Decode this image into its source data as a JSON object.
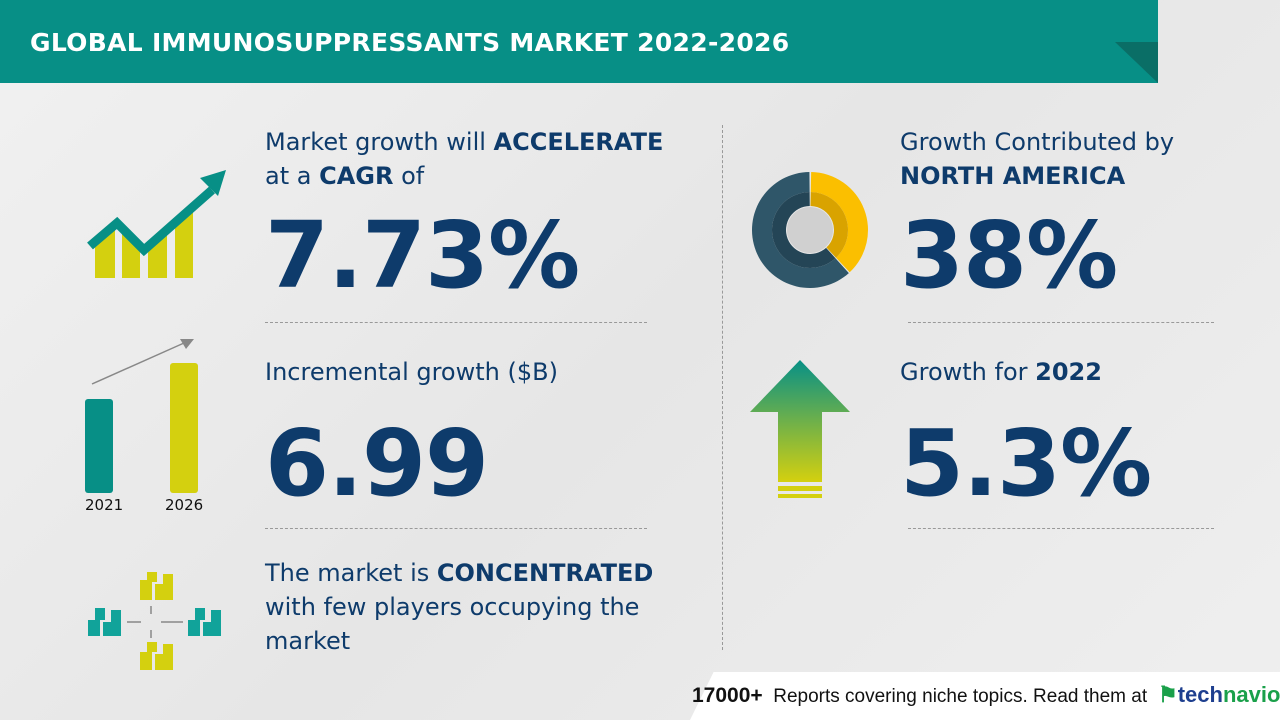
{
  "header": {
    "title": "GLOBAL IMMUNOSUPPRESSANTS MARKET 2022-2026"
  },
  "cagr": {
    "label_1": "Market growth will ",
    "label_1_bold": "ACCELERATE",
    "label_2": "at a ",
    "label_2_bold": "CAGR",
    "label_2_end": " of",
    "value": "7.73%"
  },
  "incremental": {
    "label": "Incremental growth ($B)",
    "value": "6.99",
    "bar_years": [
      "2021",
      "2026"
    ]
  },
  "concentration": {
    "label_1": "The market is ",
    "label_1_bold": "CONCENTRATED",
    "label_2": "with few players occupying the",
    "label_3": "market"
  },
  "region": {
    "label_1": "Growth Contributed by",
    "label_2_bold": "NORTH AMERICA",
    "value": "38%",
    "share_percent": 38
  },
  "yoy": {
    "label_1": "Growth for ",
    "label_1_bold": "2022",
    "value": "5.3%"
  },
  "footer": {
    "count": "17000+",
    "text": "Reports covering niche topics. Read them at",
    "logo_a": "tech",
    "logo_b": "navio"
  },
  "colors": {
    "teal": "#078f86",
    "yellow": "#d4d00f",
    "navy": "#0e3b6b",
    "donut_yellow": "#fbbf00",
    "donut_dark": "#2f5669"
  }
}
